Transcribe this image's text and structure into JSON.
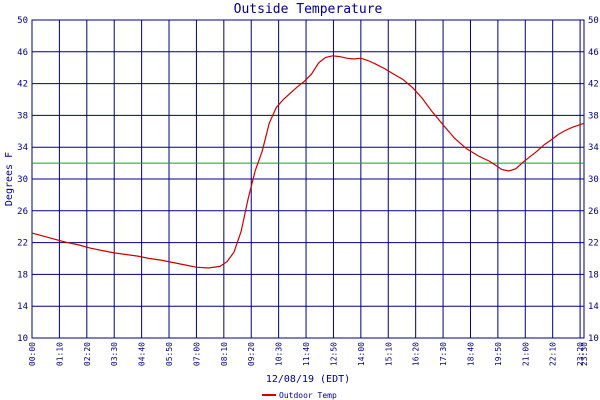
{
  "chart_data": {
    "type": "line",
    "title": "Outside Temperature",
    "xlabel": "12/08/19 (EDT)",
    "ylabel": "Degrees F",
    "ylim": [
      10,
      50
    ],
    "yticks": [
      "10",
      "14",
      "18",
      "22",
      "26",
      "30",
      "34",
      "38",
      "42",
      "46",
      "50"
    ],
    "xlim_hours": [
      0,
      23.5
    ],
    "xticks": [
      {
        "label": "00:00",
        "hour": 0
      },
      {
        "label": "01:10",
        "hour": 1.1667
      },
      {
        "label": "02:20",
        "hour": 2.3333
      },
      {
        "label": "03:30",
        "hour": 3.5
      },
      {
        "label": "04:40",
        "hour": 4.6667
      },
      {
        "label": "05:50",
        "hour": 5.8333
      },
      {
        "label": "07:00",
        "hour": 7.0
      },
      {
        "label": "08:10",
        "hour": 8.1667
      },
      {
        "label": "09:20",
        "hour": 9.3333
      },
      {
        "label": "10:30",
        "hour": 10.5
      },
      {
        "label": "11:40",
        "hour": 11.6667
      },
      {
        "label": "12:50",
        "hour": 12.8333
      },
      {
        "label": "14:00",
        "hour": 14.0
      },
      {
        "label": "15:10",
        "hour": 15.1667
      },
      {
        "label": "16:20",
        "hour": 16.3333
      },
      {
        "label": "17:30",
        "hour": 17.5
      },
      {
        "label": "18:40",
        "hour": 18.6667
      },
      {
        "label": "19:50",
        "hour": 19.8333
      },
      {
        "label": "21:00",
        "hour": 21.0
      },
      {
        "label": "22:10",
        "hour": 22.1667
      },
      {
        "label": "23:20",
        "hour": 23.3333
      },
      {
        "label": "23:30",
        "hour": 23.5
      }
    ],
    "reference_line": {
      "value": 32,
      "color": "#00b000"
    },
    "grid": true,
    "legend": "bottom-center",
    "series": [
      {
        "name": "Outdoor Temp",
        "color": "#cc0000",
        "time_hours": [
          0,
          0.5,
          1.0,
          1.5,
          2.0,
          2.5,
          3.0,
          3.5,
          4.0,
          4.5,
          5.0,
          5.5,
          6.0,
          6.5,
          7.0,
          7.5,
          8.0,
          8.3,
          8.6,
          8.9,
          9.2,
          9.5,
          9.8,
          10.1,
          10.4,
          10.7,
          11.0,
          11.3,
          11.6,
          11.9,
          12.2,
          12.5,
          12.8,
          13.1,
          13.4,
          13.7,
          14.0,
          14.3,
          14.6,
          15.0,
          15.4,
          15.8,
          16.2,
          16.6,
          17.0,
          17.5,
          18.0,
          18.5,
          19.0,
          19.5,
          20.0,
          20.3,
          20.6,
          20.9,
          21.2,
          21.5,
          21.8,
          22.1,
          22.4,
          22.7,
          23.0,
          23.3,
          23.5
        ],
        "values": [
          23.2,
          22.8,
          22.4,
          22.0,
          21.7,
          21.3,
          21.0,
          20.7,
          20.5,
          20.3,
          20.0,
          19.8,
          19.5,
          19.2,
          18.9,
          18.8,
          19.0,
          19.6,
          20.8,
          23.4,
          27.5,
          31.0,
          33.5,
          37.0,
          39.0,
          40.0,
          40.8,
          41.6,
          42.3,
          43.2,
          44.6,
          45.3,
          45.5,
          45.4,
          45.2,
          45.1,
          45.2,
          44.9,
          44.5,
          43.9,
          43.2,
          42.5,
          41.5,
          40.2,
          38.6,
          36.8,
          35.1,
          33.8,
          32.9,
          32.2,
          31.2,
          31.0,
          31.3,
          32.1,
          32.8,
          33.5,
          34.3,
          34.9,
          35.6,
          36.1,
          36.5,
          36.8,
          37.0
        ]
      }
    ]
  }
}
